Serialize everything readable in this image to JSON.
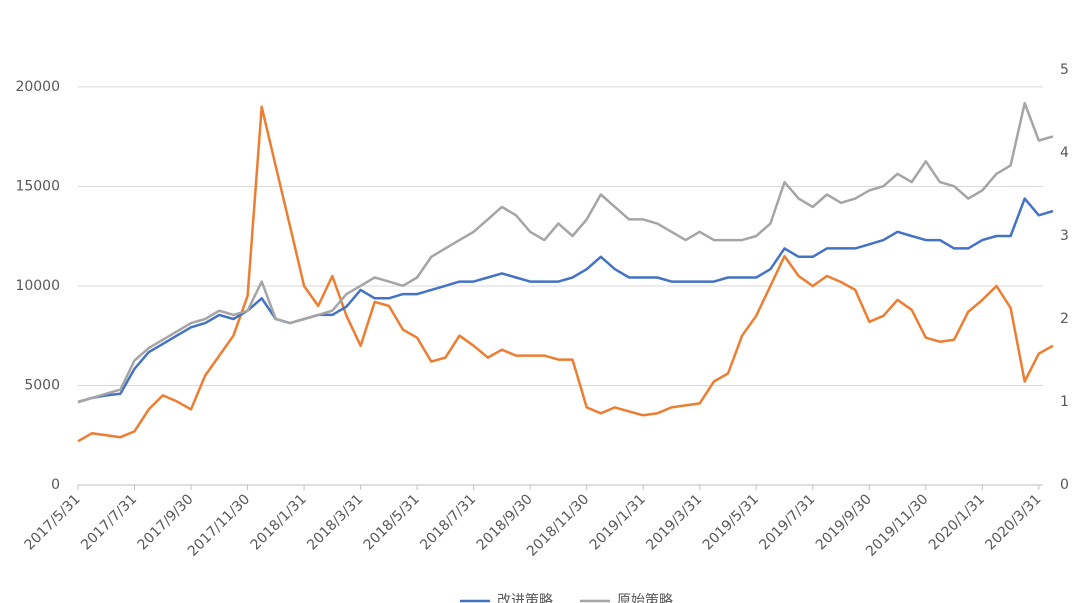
{
  "chart_data": {
    "type": "line",
    "categories": [
      "2017/5/31",
      null,
      null,
      null,
      "2017/7/31",
      null,
      null,
      null,
      "2017/9/30",
      null,
      null,
      null,
      "2017/11/30",
      null,
      null,
      null,
      "2018/1/31",
      null,
      null,
      null,
      "2018/3/31",
      null,
      null,
      null,
      "2018/5/31",
      null,
      null,
      null,
      "2018/7/31",
      null,
      null,
      null,
      "2018/9/30",
      null,
      null,
      null,
      "2018/11/30",
      null,
      null,
      null,
      "2019/1/31",
      null,
      null,
      null,
      "2019/3/31",
      null,
      null,
      null,
      "2019/5/31",
      null,
      null,
      null,
      "2019/7/31",
      null,
      null,
      null,
      "2019/9/30",
      null,
      null,
      null,
      "2019/11/30",
      null,
      null,
      null,
      "2020/1/31",
      null,
      null,
      null,
      "2020/3/31",
      null
    ],
    "series": [
      {
        "color": "#ed7d31",
        "axis": "y",
        "values": [
          2200,
          2600,
          2500,
          2400,
          2700,
          3800,
          4500,
          4200,
          3800,
          5500,
          6500,
          7500,
          9500,
          19000,
          16000,
          13000,
          10000,
          9000,
          10500,
          8500,
          7000,
          9200,
          9000,
          7800,
          7400,
          6200,
          6400,
          7500,
          7000,
          6400,
          6800,
          6500,
          6500,
          6500,
          6300,
          6300,
          3900,
          3600,
          3900,
          3700,
          3500,
          3600,
          3900,
          4000,
          4100,
          5200,
          5600,
          7500,
          8500,
          10000,
          11500,
          10500,
          10000,
          10500,
          10200,
          9800,
          8200,
          8500,
          9300,
          8800,
          7400,
          7200,
          7300,
          8700,
          9300,
          10000,
          8900,
          5200,
          6600,
          7000
        ]
      },
      {
        "name": "改进策略",
        "color": "#4472c4",
        "axis": "y2",
        "values": [
          1.0,
          1.05,
          1.08,
          1.1,
          1.4,
          1.6,
          1.7,
          1.8,
          1.9,
          1.95,
          2.05,
          2.0,
          2.1,
          2.25,
          2.0,
          1.95,
          2.0,
          2.05,
          2.05,
          2.15,
          2.35,
          2.25,
          2.25,
          2.3,
          2.3,
          2.35,
          2.4,
          2.45,
          2.45,
          2.5,
          2.55,
          2.5,
          2.45,
          2.45,
          2.45,
          2.5,
          2.6,
          2.75,
          2.6,
          2.5,
          2.5,
          2.5,
          2.45,
          2.45,
          2.45,
          2.45,
          2.5,
          2.5,
          2.5,
          2.6,
          2.85,
          2.75,
          2.75,
          2.85,
          2.85,
          2.85,
          2.9,
          2.95,
          3.05,
          3.0,
          2.95,
          2.95,
          2.85,
          2.85,
          2.95,
          3.0,
          3.0,
          3.45,
          3.25,
          3.3
        ]
      },
      {
        "name": "原始策略",
        "color": "#a5a5a5",
        "axis": "y2",
        "values": [
          1.0,
          1.05,
          1.1,
          1.15,
          1.5,
          1.65,
          1.75,
          1.85,
          1.95,
          2.0,
          2.1,
          2.05,
          2.1,
          2.45,
          2.0,
          1.95,
          2.0,
          2.05,
          2.1,
          2.3,
          2.4,
          2.5,
          2.45,
          2.4,
          2.5,
          2.75,
          2.85,
          2.95,
          3.05,
          3.2,
          3.35,
          3.25,
          3.05,
          2.95,
          3.15,
          3.0,
          3.2,
          3.5,
          3.35,
          3.2,
          3.2,
          3.15,
          3.05,
          2.95,
          3.05,
          2.95,
          2.95,
          2.95,
          3.0,
          3.15,
          3.65,
          3.45,
          3.35,
          3.5,
          3.4,
          3.45,
          3.55,
          3.6,
          3.75,
          3.65,
          3.9,
          3.65,
          3.6,
          3.45,
          3.55,
          3.75,
          3.85,
          4.6,
          4.15,
          4.2
        ]
      }
    ],
    "ylim": [
      0,
      20850
    ],
    "yticks": [
      0,
      5000,
      10000,
      15000,
      20000
    ],
    "y2lim": [
      0,
      5
    ],
    "y2ticks": [
      0,
      1,
      2,
      3,
      4,
      5
    ],
    "grid": true,
    "legend": "bottom"
  }
}
